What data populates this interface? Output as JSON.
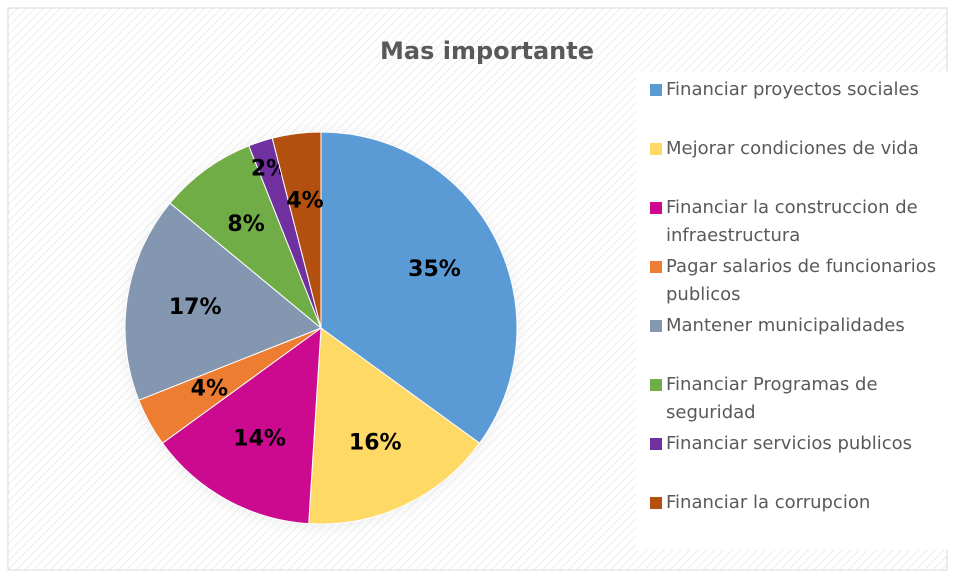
{
  "chart_data": {
    "type": "pie",
    "title": "Mas importante",
    "categories": [
      "Financiar proyectos sociales",
      "Mejorar condiciones de vida",
      "Financiar la construccion de infraestructura",
      "Pagar salarios de funcionarios publicos",
      "Mantener municipalidades",
      "Financiar Programas de seguridad",
      "Financiar servicios publicos",
      "Financiar la corrupcion"
    ],
    "values": [
      35,
      16,
      14,
      4,
      17,
      8,
      2,
      4
    ],
    "value_labels": [
      "35%",
      "16%",
      "14%",
      "4%",
      "17%",
      "8%",
      "2%",
      "4%"
    ],
    "colors": [
      "#5b9bd5",
      "#ffd966",
      "#cc0a8f",
      "#ed7d31",
      "#8497b0",
      "#70ad47",
      "#7030a0",
      "#b4500f"
    ],
    "legend": "right"
  }
}
